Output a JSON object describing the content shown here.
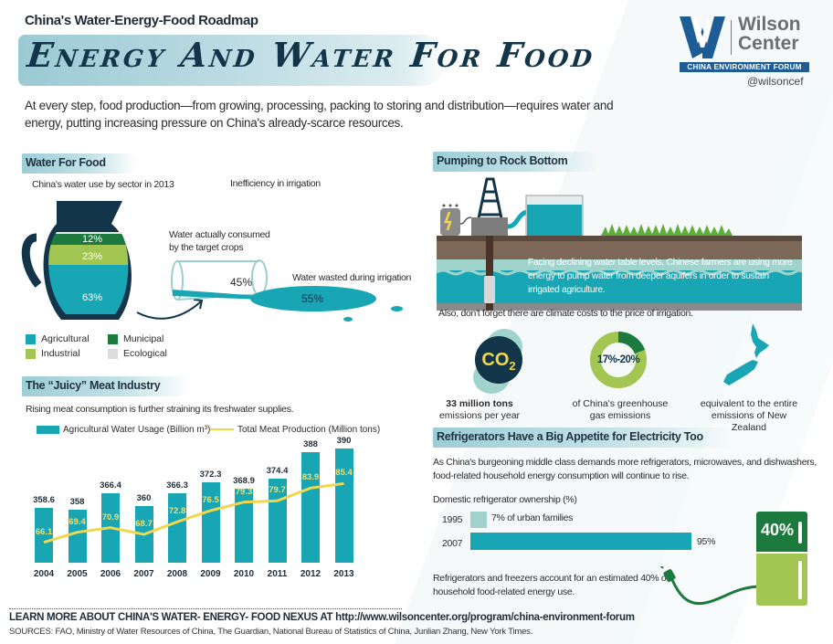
{
  "header": {
    "kicker": "China's Water-Energy-Food Roadmap",
    "title": "Energy And Water For Food",
    "intro": "At every step, food production—from growing, processing, packing to storing and distribution—requires water and energy, putting increasing pressure on China's already-scarce resources."
  },
  "logo": {
    "name_line1": "Wilson",
    "name_line2": "Center",
    "band": "CHINA ENVIRONMENT FORUM",
    "handle": "@wilsoncef",
    "colors": {
      "blue": "#1e5c96",
      "gray": "#6d6e70"
    }
  },
  "water_for_food": {
    "heading": "Water For Food",
    "jug_caption": "China's water use by sector in 2013",
    "irrigation_caption": "Inefficiency in irrigation",
    "jug_segments": [
      {
        "label": "12%",
        "sector": "Municipal",
        "color": "#1d7a3e"
      },
      {
        "label": "23%",
        "sector": "Industrial",
        "color": "#a3c653"
      },
      {
        "label": "63%",
        "sector": "Agricultural",
        "color": "#18a5b4"
      }
    ],
    "consumed_label": "Water actually consumed by the target crops",
    "consumed_pct": "45%",
    "wasted_label": "Water wasted during irrigation",
    "wasted_pct": "55%",
    "legend": [
      {
        "label": "Agricultural",
        "color": "#18a5b4"
      },
      {
        "label": "Municipal",
        "color": "#1d7a3e"
      },
      {
        "label": "Industrial",
        "color": "#a3c653"
      },
      {
        "label": "Ecological",
        "color": "#dddddd"
      }
    ]
  },
  "meat": {
    "heading": "The “Juicy” Meat Industry",
    "subtitle": "Rising meat consumption is further straining its freshwater supplies.",
    "legend_bar": "Agricultural Water Usage (Billion m³)",
    "legend_line": "Total Meat Production (Million tons)"
  },
  "chart_data": {
    "type": "bar",
    "title": "The “Juicy” Meat Industry",
    "categories": [
      "2004",
      "2005",
      "2006",
      "2007",
      "2008",
      "2009",
      "2010",
      "2011",
      "2012",
      "2013"
    ],
    "series": [
      {
        "name": "Agricultural Water Usage (Billion m³)",
        "type": "bar",
        "color": "#18a5b4",
        "values": [
          358.6,
          358,
          366.4,
          360,
          366.3,
          372.3,
          368.9,
          374.4,
          388,
          390
        ],
        "labels": [
          "358.6",
          "358",
          "366.4",
          "360",
          "366.3",
          "372.3",
          "368.9",
          "374.4",
          "388",
          "390"
        ]
      },
      {
        "name": "Total Meat Production (Million tons)",
        "type": "line",
        "color": "#f2d64b",
        "values": [
          66.1,
          69.4,
          70.9,
          68.7,
          72.8,
          76.5,
          79.3,
          79.7,
          83.9,
          85.4
        ],
        "labels": [
          "66.1",
          "69.4",
          "70.9",
          "68.7",
          "72.8",
          "76.5",
          "79.3",
          "79.7",
          "83.9",
          "85.4"
        ]
      }
    ],
    "xlabel": "",
    "ylabel": "",
    "legend_position": "top",
    "grid": false
  },
  "pumping": {
    "heading": "Pumping to Rock Bottom",
    "illustration_text": "Facing declining water table levels, Chinese farmers are using more energy to pump water from deeper aquifers in order to sustain irrigated agriculture.",
    "climate_note": "Also, don't forget there are climate costs to the price of irrigation.",
    "stats": [
      {
        "icon": "co2-icon",
        "value": "CO",
        "sub": "2",
        "caption_bold": "33 million tons",
        "caption": "emissions per year"
      },
      {
        "icon": "donut-icon",
        "value": "17%-20%",
        "caption": "of China's greenhouse gas emissions"
      },
      {
        "icon": "new-zealand-map-icon",
        "caption": "equivalent to the entire emissions of New Zealand"
      }
    ]
  },
  "fridges": {
    "heading": "Refrigerators Have a Big Appetite for Electricity Too",
    "intro": "As China's burgeoning middle class demands more refrigerators, microwaves, and dishwashers, food-related household energy consumption will continue to rise.",
    "ownership_title": "Domestic refrigerator ownership (%)",
    "rows": [
      {
        "year": "1995",
        "value": 7,
        "label": "7% of urban families",
        "color": "#9fd3cc"
      },
      {
        "year": "2007",
        "value": 95,
        "label": "95%",
        "color": "#18a5b4"
      }
    ],
    "fridge_pct": "40%",
    "note": "Refrigerators and freezers account for an estimated 40% of household food-related energy use."
  },
  "footer": {
    "learn_more": "LEARN MORE ABOUT CHINA'S WATER- ENERGY- FOOD NEXUS AT http://www.wilsoncenter.org/program/china-environment-forum",
    "sources": "SOURCES: FAO, Ministry of Water Resources of China, The Guardian, National Bureau of Statistics of China, Junlian Zhang, New York Times."
  }
}
